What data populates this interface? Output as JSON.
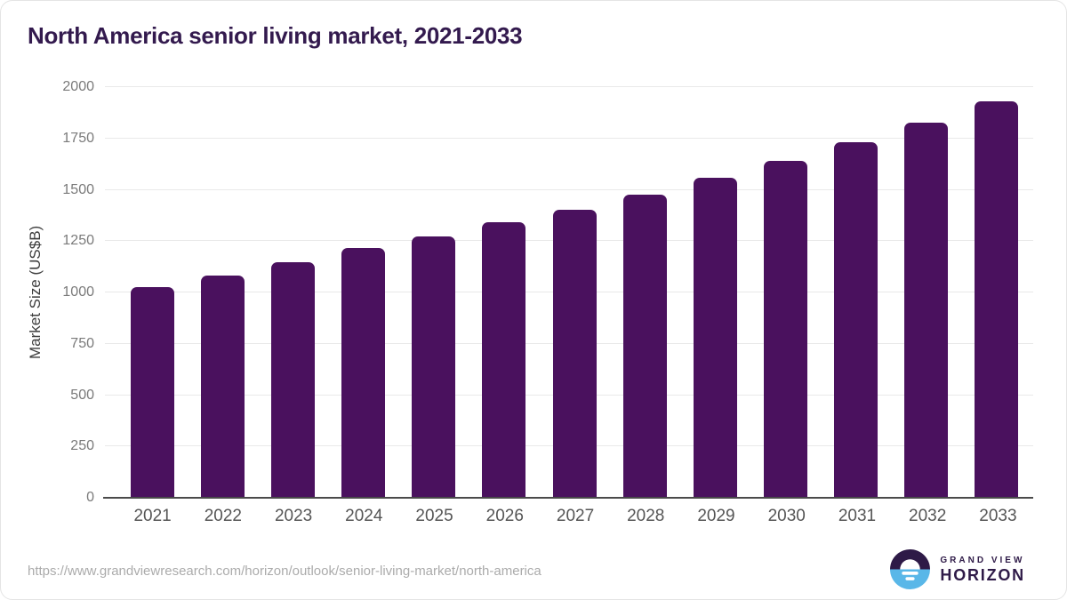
{
  "chart_data": {
    "type": "bar",
    "title": "North America senior living market, 2021-2033",
    "categories": [
      "2021",
      "2022",
      "2023",
      "2024",
      "2025",
      "2026",
      "2027",
      "2028",
      "2029",
      "2030",
      "2031",
      "2032",
      "2033"
    ],
    "values": [
      1025,
      1082,
      1147,
      1215,
      1274,
      1340,
      1403,
      1478,
      1557,
      1641,
      1731,
      1827,
      1932
    ],
    "xlabel": "",
    "ylabel": "Market Size (US$B)",
    "ylim": [
      0,
      2000
    ],
    "ytick_step": 250,
    "grid": true,
    "legend": false,
    "bar_color": "#4A115E"
  },
  "footer": {
    "source_url": "https://www.grandviewresearch.com/horizon/outlook/senior-living-market/north-america",
    "logo": {
      "line1": "GRAND VIEW",
      "line2": "HORIZON"
    }
  },
  "colors": {
    "bar": "#4A115E",
    "title": "#331A4E",
    "logo_dark": "#2E1A47",
    "logo_blue": "#59B7E8",
    "axis_line": "#4A4A4A",
    "axis_title": "#3D3D3D",
    "gridline": "#E9E9E9",
    "tick_label": "#7A7A7A",
    "x_label": "#555555",
    "url": "#ABABAB"
  }
}
